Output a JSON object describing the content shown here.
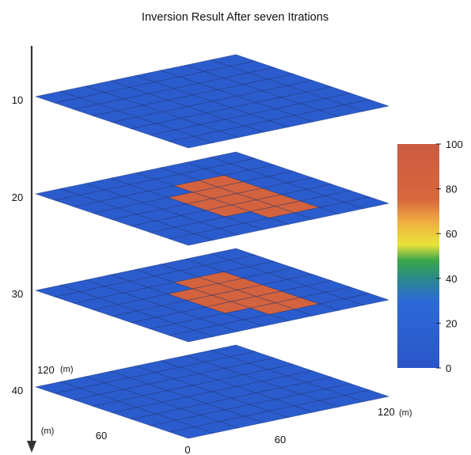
{
  "chart_data": {
    "type": "heatmap",
    "title": "Inversion Result After seven Itrations",
    "depth_axis": {
      "ticks": [
        "10",
        "20",
        "30",
        "40"
      ]
    },
    "x_axis": {
      "ticks": [
        "0",
        "60",
        "120"
      ],
      "unit": "(m)"
    },
    "y_axis": {
      "ticks": [
        "60",
        "120"
      ],
      "unit": "(m)"
    },
    "grid_size": 8,
    "background_value": 10,
    "layers": [
      {
        "depth": 10,
        "anomaly_cells": []
      },
      {
        "depth": 20,
        "anomaly_cells": [
          [
            3,
            3
          ],
          [
            3,
            4
          ],
          [
            3,
            5
          ],
          [
            4,
            2
          ],
          [
            4,
            3
          ],
          [
            4,
            4
          ],
          [
            4,
            5
          ],
          [
            4,
            6
          ],
          [
            5,
            2
          ],
          [
            5,
            3
          ],
          [
            5,
            4
          ],
          [
            5,
            5
          ],
          [
            5,
            6
          ]
        ],
        "anomaly_value": 85
      },
      {
        "depth": 30,
        "anomaly_cells": [
          [
            3,
            3
          ],
          [
            3,
            4
          ],
          [
            3,
            5
          ],
          [
            4,
            2
          ],
          [
            4,
            3
          ],
          [
            4,
            4
          ],
          [
            4,
            5
          ],
          [
            4,
            6
          ],
          [
            5,
            2
          ],
          [
            5,
            3
          ],
          [
            5,
            4
          ],
          [
            5,
            5
          ],
          [
            5,
            6
          ]
        ],
        "anomaly_value": 85
      },
      {
        "depth": 40,
        "anomaly_cells": []
      }
    ],
    "colorbar": {
      "ticks": [
        "0",
        "20",
        "40",
        "60",
        "80",
        "100"
      ],
      "min": 0,
      "max": 100,
      "stops": [
        {
          "value": 0,
          "color": "#2b55c8"
        },
        {
          "value": 30,
          "color": "#2c6ad8"
        },
        {
          "value": 40,
          "color": "#2a8a8a"
        },
        {
          "value": 48,
          "color": "#3aa64a"
        },
        {
          "value": 55,
          "color": "#e8e33a"
        },
        {
          "value": 65,
          "color": "#f0b040"
        },
        {
          "value": 75,
          "color": "#d8683c"
        },
        {
          "value": 100,
          "color": "#cc5a42"
        }
      ]
    }
  }
}
